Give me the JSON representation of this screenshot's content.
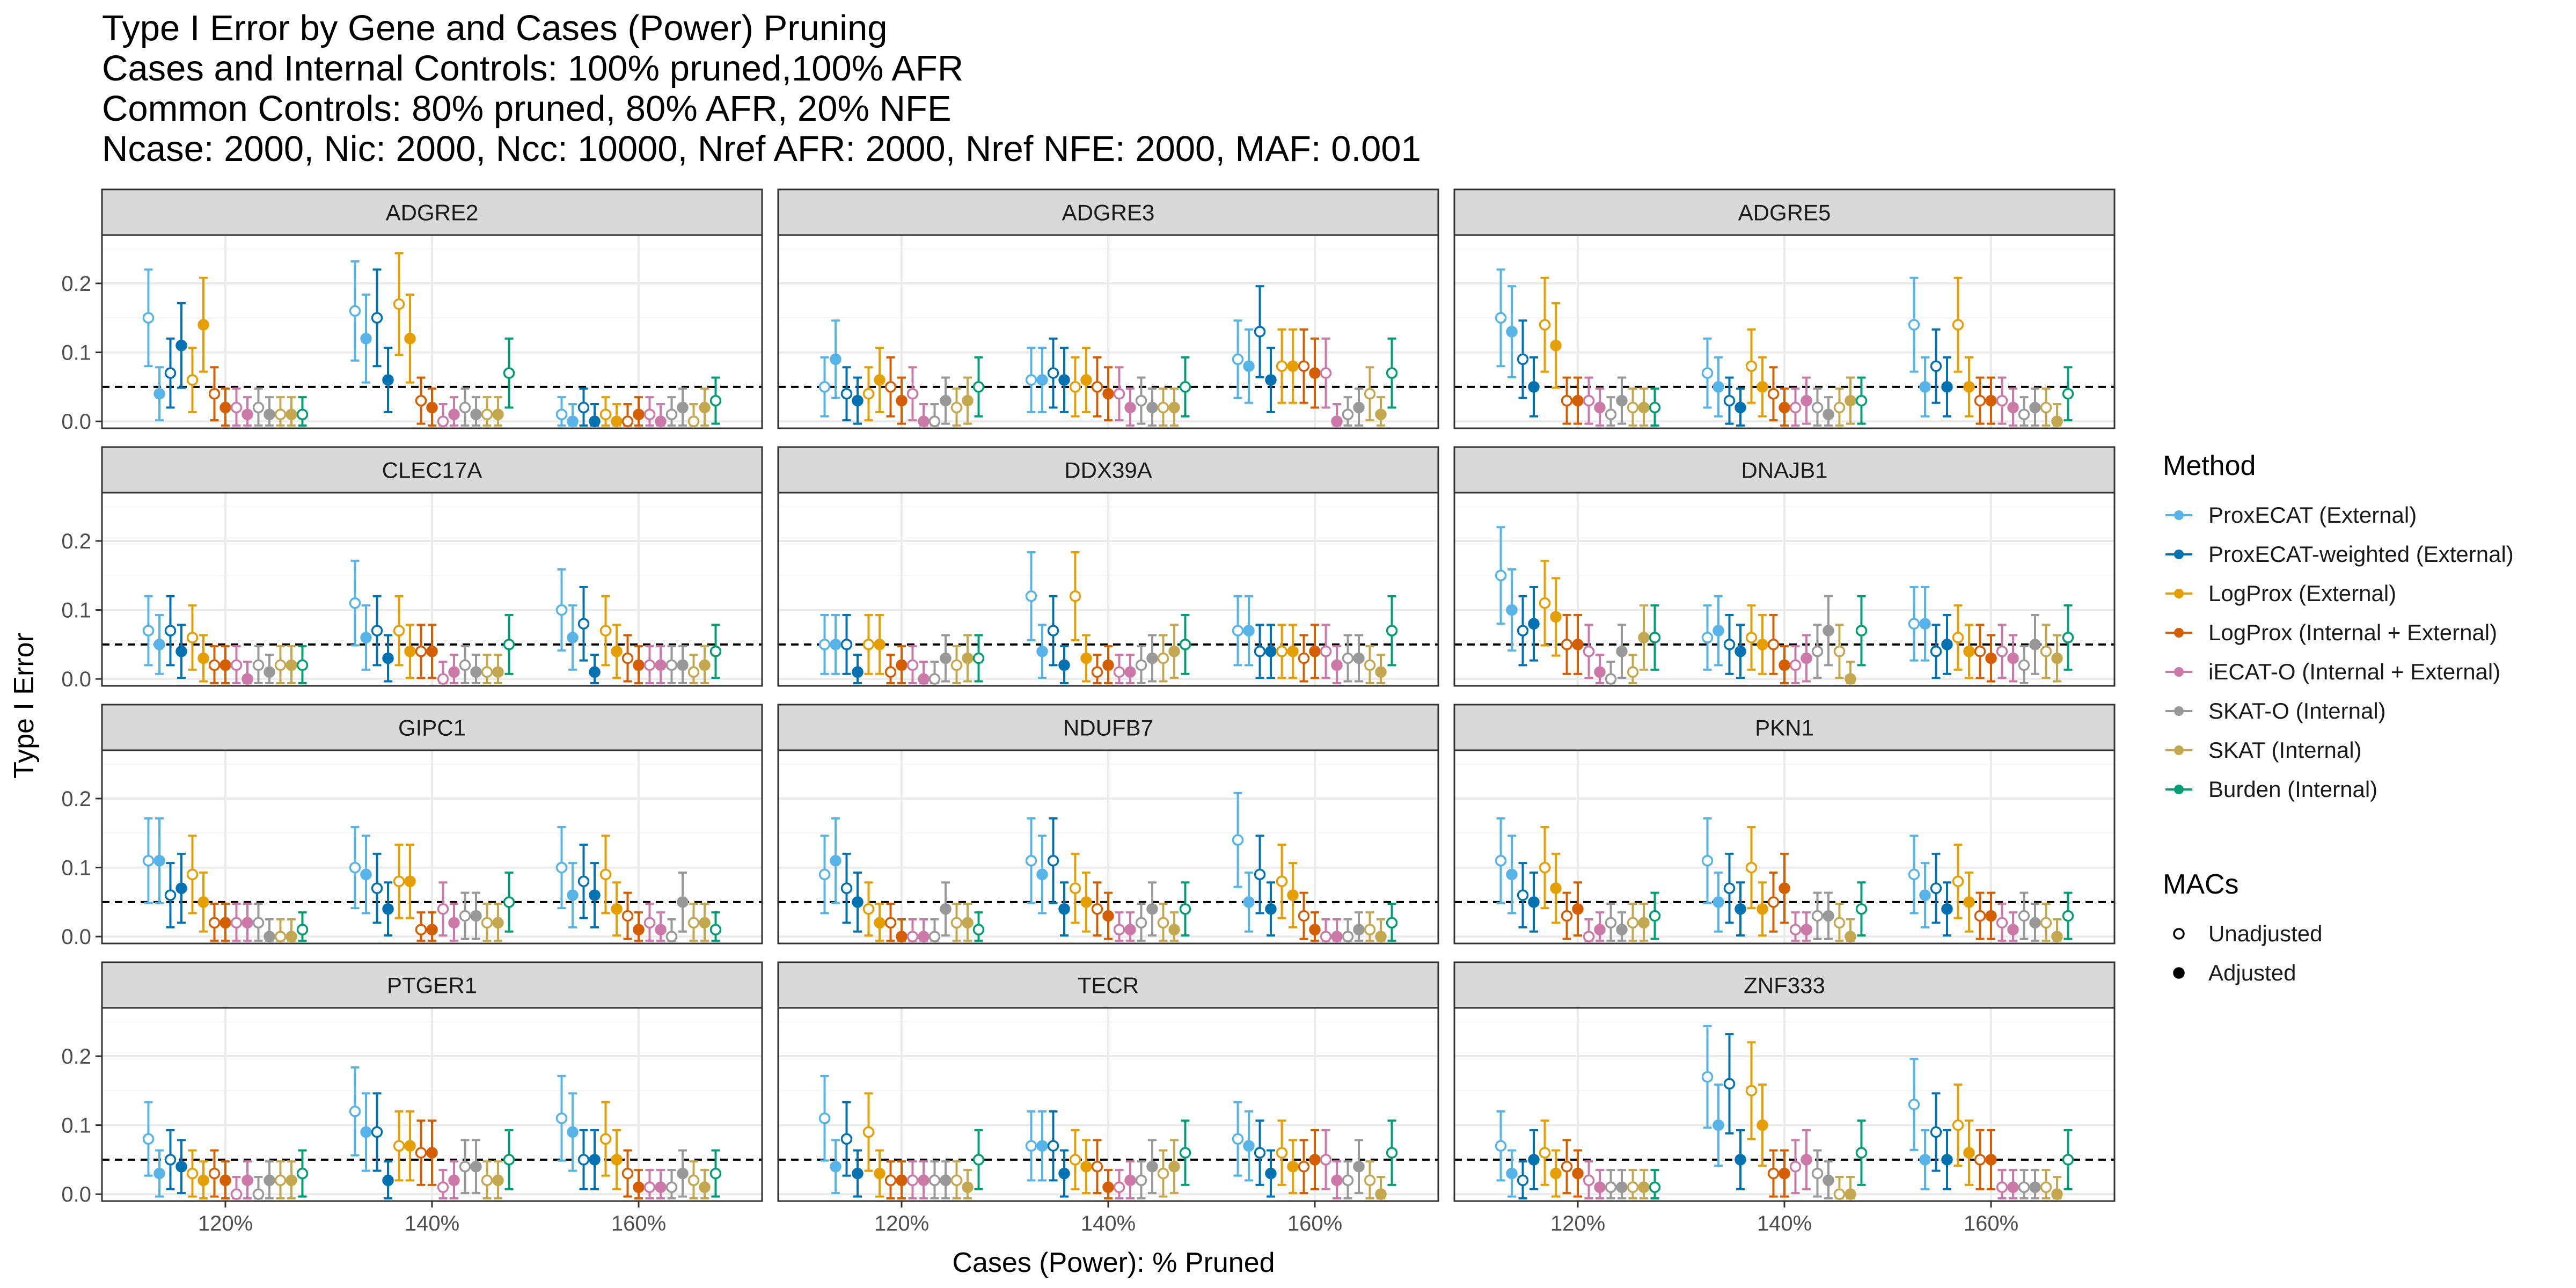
{
  "title_lines": [
    "Type I Error by Gene and Cases (Power) Pruning",
    "Cases and Internal Controls: 100% pruned,100% AFR",
    "Common Controls: 80% pruned, 80% AFR, 20% NFE",
    "Ncase: 2000, Nic: 2000, Ncc: 10000, Nref AFR: 2000, Nref NFE: 2000, MAF: 0.001"
  ],
  "chart_data": {
    "type": "scatter",
    "subtype": "point-with-errorbars, faceted 4x3",
    "xlabel": "Cases (Power): % Pruned",
    "ylabel": "Type I Error",
    "categories": [
      "120%",
      "140%",
      "160%"
    ],
    "ylim": [
      -0.01,
      0.27
    ],
    "yticks": [
      0.0,
      0.1,
      0.2
    ],
    "ytick_labels": [
      "0.0",
      "0.1",
      "0.2"
    ],
    "reference_line": 0.05,
    "grid": true,
    "legend_position": "right",
    "methods": [
      {
        "name": "ProxECAT (External)",
        "color": "#56B4E9"
      },
      {
        "name": "ProxECAT-weighted (External)",
        "color": "#0072B2"
      },
      {
        "name": "LogProx (External)",
        "color": "#E69F00"
      },
      {
        "name": "LogProx (Internal + External)",
        "color": "#D55E00"
      },
      {
        "name": "iECAT-O (Internal + External)",
        "color": "#CC79A7"
      },
      {
        "name": "SKAT-O (Internal)",
        "color": "#999999"
      },
      {
        "name": "SKAT (Internal)",
        "color": "#C4A84F"
      },
      {
        "name": "Burden (Internal)",
        "color": "#009E73"
      }
    ],
    "macs": [
      "Unadjusted",
      "Adjusted"
    ],
    "series_order": [
      [
        0,
        "U"
      ],
      [
        0,
        "A"
      ],
      [
        1,
        "U"
      ],
      [
        1,
        "A"
      ],
      [
        2,
        "U"
      ],
      [
        2,
        "A"
      ],
      [
        3,
        "U"
      ],
      [
        3,
        "A"
      ],
      [
        4,
        "U"
      ],
      [
        4,
        "A"
      ],
      [
        5,
        "U"
      ],
      [
        5,
        "A"
      ],
      [
        6,
        "U"
      ],
      [
        6,
        "A"
      ],
      [
        7,
        "U"
      ]
    ],
    "note": "values per panel: categories x 15 series (estimate) in series_order; error bars are 95% binomial intervals derived from estimate",
    "panels": [
      {
        "gene": "ADGRE2",
        "values": [
          [
            0.15,
            0.04,
            0.07,
            0.11,
            0.06,
            0.14,
            0.04,
            0.02,
            0.02,
            0.01,
            0.02,
            0.01,
            0.01,
            0.01,
            0.01
          ],
          [
            0.16,
            0.12,
            0.15,
            0.06,
            0.17,
            0.12,
            0.03,
            0.02,
            0.0,
            0.01,
            0.02,
            0.01,
            0.01,
            0.01,
            0.07
          ],
          [
            0.01,
            0.0,
            0.02,
            0.0,
            0.01,
            0.0,
            0.0,
            0.01,
            0.01,
            0.0,
            0.01,
            0.02,
            0.0,
            0.02,
            0.03
          ]
        ]
      },
      {
        "gene": "ADGRE3",
        "values": [
          [
            0.05,
            0.09,
            0.04,
            0.03,
            0.04,
            0.06,
            0.05,
            0.03,
            0.04,
            0.0,
            0.0,
            0.03,
            0.02,
            0.03,
            0.05
          ],
          [
            0.06,
            0.06,
            0.07,
            0.06,
            0.05,
            0.06,
            0.05,
            0.04,
            0.04,
            0.02,
            0.03,
            0.02,
            0.02,
            0.02,
            0.05
          ],
          [
            0.09,
            0.08,
            0.13,
            0.06,
            0.08,
            0.08,
            0.08,
            0.07,
            0.07,
            0.0,
            0.01,
            0.02,
            0.04,
            0.01,
            0.07
          ]
        ]
      },
      {
        "gene": "ADGRE5",
        "values": [
          [
            0.15,
            0.13,
            0.09,
            0.05,
            0.14,
            0.11,
            0.03,
            0.03,
            0.03,
            0.02,
            0.01,
            0.03,
            0.02,
            0.02,
            0.02
          ],
          [
            0.07,
            0.05,
            0.03,
            0.02,
            0.08,
            0.05,
            0.04,
            0.02,
            0.02,
            0.03,
            0.02,
            0.01,
            0.02,
            0.03,
            0.03
          ],
          [
            0.14,
            0.05,
            0.08,
            0.05,
            0.14,
            0.05,
            0.03,
            0.03,
            0.03,
            0.02,
            0.01,
            0.02,
            0.02,
            0.0,
            0.04
          ]
        ]
      },
      {
        "gene": "CLEC17A",
        "values": [
          [
            0.07,
            0.05,
            0.07,
            0.04,
            0.06,
            0.03,
            0.02,
            0.02,
            0.02,
            0.0,
            0.02,
            0.01,
            0.02,
            0.02,
            0.02
          ],
          [
            0.11,
            0.06,
            0.07,
            0.03,
            0.07,
            0.04,
            0.04,
            0.04,
            0.0,
            0.01,
            0.02,
            0.01,
            0.01,
            0.01,
            0.05
          ],
          [
            0.1,
            0.06,
            0.08,
            0.01,
            0.07,
            0.04,
            0.03,
            0.02,
            0.02,
            0.02,
            0.02,
            0.02,
            0.01,
            0.02,
            0.04
          ]
        ]
      },
      {
        "gene": "DDX39A",
        "values": [
          [
            0.05,
            0.05,
            0.05,
            0.01,
            0.05,
            0.05,
            0.01,
            0.02,
            0.02,
            0.0,
            0.0,
            0.03,
            0.02,
            0.03,
            0.03
          ],
          [
            0.12,
            0.04,
            0.07,
            0.02,
            0.12,
            0.03,
            0.01,
            0.02,
            0.01,
            0.01,
            0.02,
            0.03,
            0.03,
            0.04,
            0.05
          ],
          [
            0.07,
            0.07,
            0.04,
            0.04,
            0.04,
            0.04,
            0.03,
            0.04,
            0.04,
            0.02,
            0.03,
            0.03,
            0.02,
            0.01,
            0.07
          ]
        ]
      },
      {
        "gene": "DNAJB1",
        "values": [
          [
            0.15,
            0.1,
            0.07,
            0.08,
            0.11,
            0.09,
            0.05,
            0.05,
            0.04,
            0.01,
            0.0,
            0.04,
            0.01,
            0.06,
            0.06
          ],
          [
            0.06,
            0.07,
            0.05,
            0.04,
            0.06,
            0.05,
            0.05,
            0.02,
            0.02,
            0.03,
            0.04,
            0.07,
            0.04,
            0.0,
            0.07
          ],
          [
            0.08,
            0.08,
            0.04,
            0.05,
            0.06,
            0.04,
            0.04,
            0.03,
            0.04,
            0.03,
            0.02,
            0.05,
            0.04,
            0.03,
            0.06
          ]
        ]
      },
      {
        "gene": "GIPC1",
        "values": [
          [
            0.11,
            0.11,
            0.06,
            0.07,
            0.09,
            0.05,
            0.02,
            0.02,
            0.02,
            0.02,
            0.02,
            0.0,
            0.0,
            0.0,
            0.01
          ],
          [
            0.1,
            0.09,
            0.07,
            0.04,
            0.08,
            0.08,
            0.01,
            0.01,
            0.04,
            0.02,
            0.03,
            0.03,
            0.02,
            0.02,
            0.05
          ],
          [
            0.1,
            0.06,
            0.08,
            0.06,
            0.09,
            0.04,
            0.03,
            0.01,
            0.02,
            0.01,
            0.0,
            0.05,
            0.02,
            0.02,
            0.01
          ]
        ]
      },
      {
        "gene": "NDUFB7",
        "values": [
          [
            0.09,
            0.11,
            0.07,
            0.05,
            0.04,
            0.02,
            0.02,
            0.0,
            0.0,
            0.0,
            0.0,
            0.04,
            0.02,
            0.02,
            0.01
          ],
          [
            0.11,
            0.09,
            0.11,
            0.04,
            0.07,
            0.05,
            0.04,
            0.03,
            0.01,
            0.01,
            0.02,
            0.04,
            0.02,
            0.01,
            0.04
          ],
          [
            0.14,
            0.05,
            0.09,
            0.04,
            0.08,
            0.06,
            0.03,
            0.01,
            0.0,
            0.0,
            0.0,
            0.01,
            0.01,
            0.0,
            0.02
          ]
        ]
      },
      {
        "gene": "PKN1",
        "values": [
          [
            0.11,
            0.09,
            0.06,
            0.05,
            0.1,
            0.07,
            0.03,
            0.04,
            0.0,
            0.01,
            0.02,
            0.01,
            0.02,
            0.02,
            0.03
          ],
          [
            0.11,
            0.05,
            0.07,
            0.04,
            0.1,
            0.04,
            0.05,
            0.07,
            0.01,
            0.01,
            0.03,
            0.03,
            0.02,
            0.0,
            0.04
          ],
          [
            0.09,
            0.06,
            0.07,
            0.04,
            0.08,
            0.05,
            0.03,
            0.03,
            0.02,
            0.01,
            0.03,
            0.02,
            0.02,
            0.0,
            0.03
          ]
        ]
      },
      {
        "gene": "PTGER1",
        "values": [
          [
            0.08,
            0.03,
            0.05,
            0.04,
            0.03,
            0.02,
            0.03,
            0.02,
            0.0,
            0.02,
            0.0,
            0.02,
            0.02,
            0.02,
            0.03
          ],
          [
            0.12,
            0.09,
            0.09,
            0.02,
            0.07,
            0.07,
            0.06,
            0.06,
            0.01,
            0.02,
            0.04,
            0.04,
            0.02,
            0.02,
            0.05
          ],
          [
            0.11,
            0.09,
            0.05,
            0.05,
            0.08,
            0.05,
            0.03,
            0.01,
            0.01,
            0.01,
            0.01,
            0.03,
            0.02,
            0.01,
            0.03
          ]
        ]
      },
      {
        "gene": "TECR",
        "values": [
          [
            0.11,
            0.04,
            0.08,
            0.03,
            0.09,
            0.03,
            0.02,
            0.02,
            0.02,
            0.02,
            0.02,
            0.02,
            0.02,
            0.01,
            0.05
          ],
          [
            0.07,
            0.07,
            0.07,
            0.03,
            0.05,
            0.04,
            0.04,
            0.01,
            0.01,
            0.02,
            0.02,
            0.04,
            0.03,
            0.04,
            0.06
          ],
          [
            0.08,
            0.07,
            0.06,
            0.03,
            0.06,
            0.04,
            0.04,
            0.05,
            0.05,
            0.02,
            0.02,
            0.04,
            0.02,
            0.0,
            0.06
          ]
        ]
      },
      {
        "gene": "ZNF333",
        "values": [
          [
            0.07,
            0.03,
            0.02,
            0.05,
            0.06,
            0.03,
            0.04,
            0.03,
            0.02,
            0.01,
            0.01,
            0.01,
            0.01,
            0.01,
            0.01
          ],
          [
            0.17,
            0.1,
            0.16,
            0.05,
            0.15,
            0.1,
            0.03,
            0.03,
            0.04,
            0.05,
            0.03,
            0.02,
            0.0,
            0.0,
            0.06
          ],
          [
            0.13,
            0.05,
            0.09,
            0.05,
            0.1,
            0.06,
            0.05,
            0.05,
            0.01,
            0.01,
            0.01,
            0.01,
            0.01,
            0.0,
            0.05
          ]
        ]
      }
    ]
  },
  "legend": {
    "method_title": "Method",
    "method_items": [
      "ProxECAT (External)",
      "ProxECAT-weighted (External)",
      "LogProx (External)",
      "LogProx (Internal + External)",
      "iECAT-O (Internal + External)",
      "SKAT-O (Internal)",
      "SKAT (Internal)",
      "Burden (Internal)"
    ],
    "macs_title": "MACs",
    "macs_items": [
      "Unadjusted",
      "Adjusted"
    ]
  },
  "colors": {
    "panel_background": "#ffffff",
    "panel_border": "#333333",
    "strip_background": "#d9d9d9",
    "grid_major": "#ebebeb",
    "grid_minor": "#f5f5f5",
    "reference_line": "#000000"
  }
}
